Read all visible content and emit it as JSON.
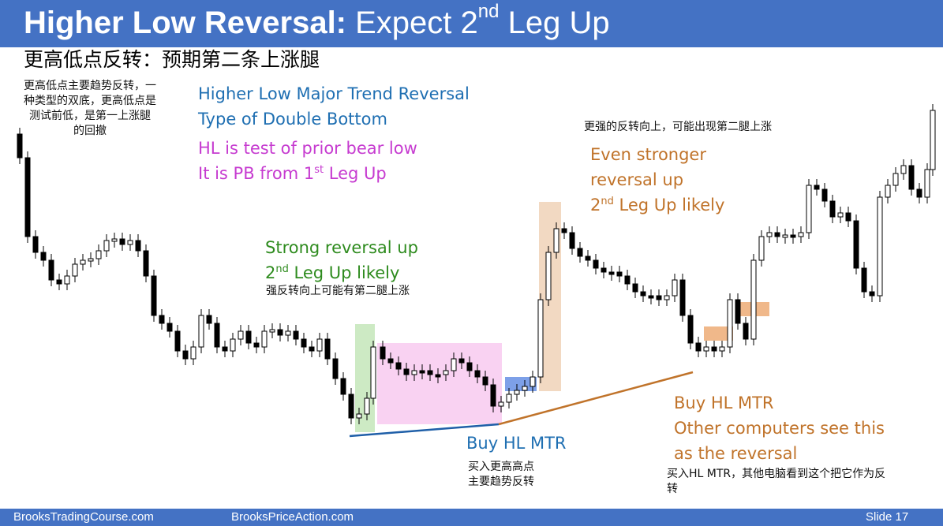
{
  "slide": {
    "title_bold": "Higher Low Reversal:",
    "title_rest_pre": " Expect 2",
    "title_sup": "nd",
    "title_rest_post": " Leg Up",
    "subtitle_zh": "更高低点反转：预期第二条上涨腿"
  },
  "notes": {
    "left_zh": "更高低点主要趋势反转，一\n种类型的双底，更高低点是\n测试前低，是第一上涨腿\n的回撤",
    "right_zh": "更强的反转向上，可能出现第二腿上涨",
    "mid_zh": "强反转向上可能有第二腿上涨",
    "buy_zh": "买入更高高点\n主要趋势反转",
    "buy2_zh": "买入HL MTR，其他电脑看到这个把它作为反\n转"
  },
  "annotations": {
    "hl_major": "Higher Low Major Trend Reversal",
    "double_bottom": "Type of Double Bottom",
    "hl_test": "HL is test of prior bear low",
    "pb_pre": "It is PB from 1",
    "pb_sup": "st",
    "pb_post": " Leg Up",
    "strong_rev": "Strong reversal up",
    "leg2_pre": "2",
    "leg2_sup": "nd",
    "leg2_post": " Leg Up likely",
    "even_stronger_1": "Even stronger",
    "even_stronger_2": "reversal up",
    "even_leg_pre": "2",
    "even_leg_sup": "nd",
    "even_leg_post": " Leg Up likely",
    "buy_hl": "Buy HL MTR",
    "buy_hl2_1": "Buy HL MTR",
    "buy_hl2_2": "Other computers see this",
    "buy_hl2_3": "as the reversal"
  },
  "footer": {
    "left": "BrooksTradingCourse.com",
    "mid": "BrooksPriceAction.com",
    "right": "Slide  17"
  },
  "colors": {
    "header": "#4472c4",
    "blue_text": "#1f6fb2",
    "pink_text": "#c63bd0",
    "green_text": "#2e8b1e",
    "orange_text": "#c0732a",
    "green_box": "#cdeac4",
    "pink_box": "#f9d2f2",
    "tan_box": "#f2d9c2",
    "blue_box": "#7da0e8",
    "orange_box": "#f0b88a"
  }
}
